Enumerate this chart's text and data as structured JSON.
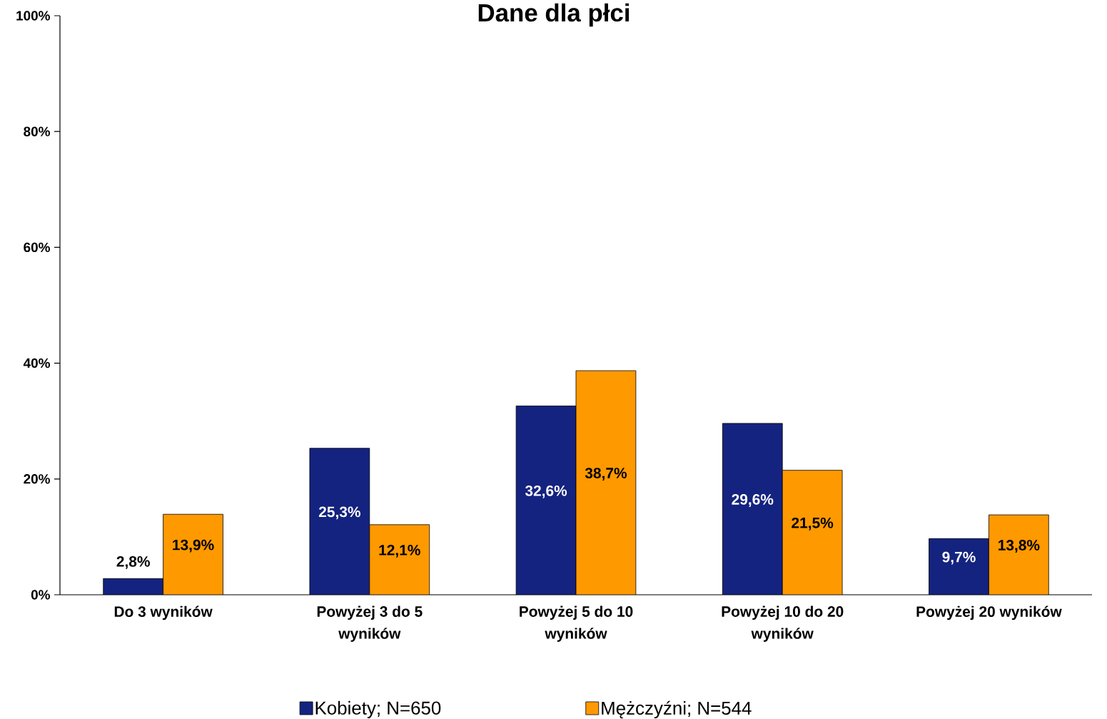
{
  "chart_data": {
    "type": "bar",
    "title": "Dane dla płci",
    "categories": [
      "Do 3 wyników",
      "Powyżej 3 do 5 wyników",
      "Powyżej 5 do 10 wyników",
      "Powyżej 10 do 20 wyników",
      "Powyżej 20 wyników"
    ],
    "series": [
      {
        "name": "Kobiety; N=650",
        "color": "#14237f",
        "values": [
          2.8,
          25.3,
          32.6,
          29.6,
          9.7
        ],
        "value_labels": [
          "2,8%",
          "25,3%",
          "32,6%",
          "29,6%",
          "9,7%"
        ]
      },
      {
        "name": "Mężczyźni; N=544",
        "color": "#ff9900",
        "values": [
          13.9,
          12.1,
          38.7,
          21.5,
          13.8
        ],
        "value_labels": [
          "13,9%",
          "12,1%",
          "38,7%",
          "21,5%",
          "13,8%"
        ]
      }
    ],
    "ylim": [
      0,
      100
    ],
    "yticks": [
      {
        "value": 0,
        "label": "0%"
      },
      {
        "value": 20,
        "label": "20%"
      },
      {
        "value": 40,
        "label": "40%"
      },
      {
        "value": 60,
        "label": "60%"
      },
      {
        "value": 80,
        "label": "80%"
      },
      {
        "value": 100,
        "label": "100%"
      }
    ],
    "legend": "bottom"
  }
}
